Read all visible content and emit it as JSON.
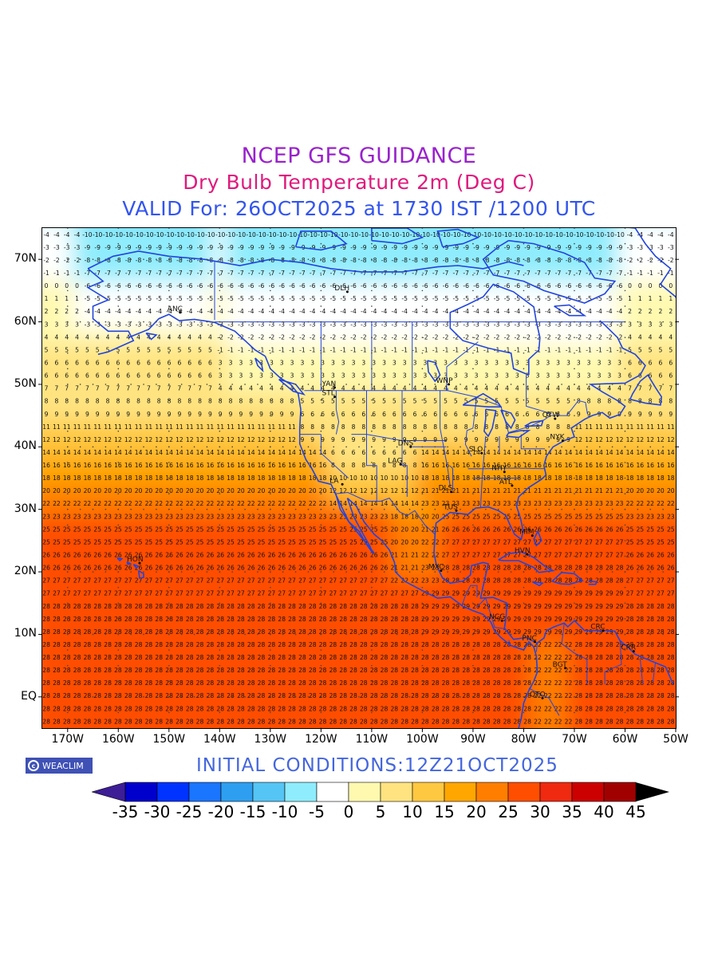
{
  "header": {
    "line1": "NCEP GFS GUIDANCE",
    "line2": "Dry Bulb Temperature 2m (Deg C)",
    "line3": "VALID For: 26OCT2025 at 1730 IST /1200 UTC",
    "line1_color": "#9922cc",
    "line2_color": "#e0197d",
    "line3_color": "#3355ee"
  },
  "map": {
    "lon_range": [
      -175,
      -50
    ],
    "lat_range": [
      -5,
      75
    ],
    "lat_labels": [
      "70N",
      "60N",
      "50N",
      "40N",
      "30N",
      "20N",
      "10N",
      "EQ"
    ],
    "lon_labels": [
      "170W",
      "160W",
      "150W",
      "140W",
      "130W",
      "120W",
      "110W",
      "100W",
      "90W",
      "80W",
      "70W",
      "60W",
      "50W"
    ],
    "coastline_color": "#2244dd",
    "station_codes": [
      "ANC",
      "DLH",
      "YAN",
      "STL",
      "WNP",
      "QTW",
      "NYK",
      "NHY",
      "ATL",
      "SLO",
      "DNS",
      "LA",
      "DLS",
      "TUS",
      "MIM",
      "HVN",
      "HON",
      "MXC",
      "NCG",
      "CRC",
      "PNC",
      "BGT",
      "QTO",
      "CRR",
      "LAG"
    ]
  },
  "footer": {
    "logo_text": "WEACLIM",
    "logo_icon": "copyright-icon",
    "initial_conditions": "INITIAL  CONDITIONS:12Z21OCT2025"
  },
  "colorbar": {
    "labels": [
      "-35",
      "-30",
      "-25",
      "-20",
      "-15",
      "-10",
      "-5",
      "0",
      "5",
      "10",
      "15",
      "20",
      "25",
      "30",
      "35",
      "40",
      "45"
    ],
    "under_color": "#3d1e96",
    "over_color": "#000000",
    "colors": [
      "#0000cc",
      "#0033ff",
      "#1a75ff",
      "#2e9ff0",
      "#55c5f5",
      "#8fecfc",
      "#ffffff",
      "#fff9b0",
      "#ffe380",
      "#ffc840",
      "#ffa600",
      "#ff7e00",
      "#ff4e00",
      "#ef2a10",
      "#cc0000",
      "#a10000"
    ]
  }
}
